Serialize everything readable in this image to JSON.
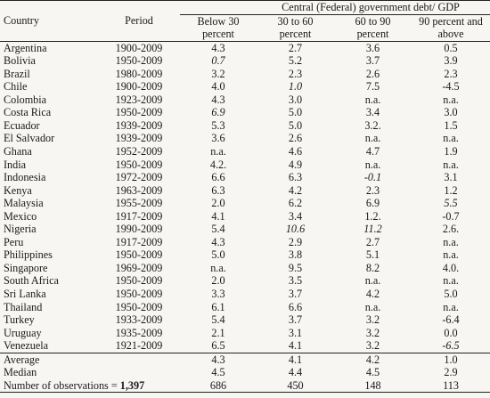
{
  "header": {
    "group_title": "Central (Federal) government debt/ GDP",
    "country": "Country",
    "period": "Period",
    "cols_line1": [
      "Below 30",
      "30 to 60",
      "60 to 90",
      "90 percent and"
    ],
    "cols_line2": [
      "percent",
      "percent",
      "percent",
      "above"
    ]
  },
  "rows": [
    {
      "country": "Argentina",
      "period": "1900-2009",
      "v": [
        "4.3",
        "2.7",
        "3.6",
        "0.5"
      ]
    },
    {
      "country": "Bolivia",
      "period": "1950-2009",
      "v": [
        "0.7",
        "5.2",
        "3.7",
        "3.9"
      ]
    },
    {
      "country": "Brazil",
      "period": "1980-2009",
      "v": [
        "3.2",
        "2.3",
        "2.6",
        "2.3"
      ]
    },
    {
      "country": "Chile",
      "period": "1900-2009",
      "v": [
        "4.0",
        "1.0",
        "7.5",
        "-4.5"
      ]
    },
    {
      "country": "Colombia",
      "period": "1923-2009",
      "v": [
        "4.3",
        "3.0",
        "n.a.",
        "n.a."
      ]
    },
    {
      "country": "Costa Rica",
      "period": "1950-2009",
      "v": [
        "6.9",
        "5.0",
        "3.4",
        "3.0"
      ]
    },
    {
      "country": "Ecuador",
      "period": "1939-2009",
      "v": [
        "5.3",
        "5.0",
        "3.2.",
        "1.5"
      ]
    },
    {
      "country": "El Salvador",
      "period": "1939-2009",
      "v": [
        "3.6",
        "2.6",
        "n.a.",
        "n.a."
      ]
    },
    {
      "country": "Ghana",
      "period": "1952-2009",
      "v": [
        "n.a.",
        "4.6",
        "4.7",
        "1.9"
      ]
    },
    {
      "country": "India",
      "period": "1950-2009",
      "v": [
        "4.2.",
        "4.9",
        "n.a.",
        "n.a."
      ]
    },
    {
      "country": "Indonesia",
      "period": "1972-2009",
      "v": [
        "6.6",
        "6.3",
        "-0.1",
        "3.1"
      ]
    },
    {
      "country": "Kenya",
      "period": "1963-2009",
      "v": [
        "6.3",
        "4.2",
        "2.3",
        "1.2"
      ]
    },
    {
      "country": "Malaysia",
      "period": "1955-2009",
      "v": [
        "2.0",
        "6.2",
        "6.9",
        "5.5"
      ]
    },
    {
      "country": "Mexico",
      "period": "1917-2009",
      "v": [
        "4.1",
        "3.4",
        "1.2.",
        "-0.7"
      ]
    },
    {
      "country": "Nigeria",
      "period": "1990-2009",
      "v": [
        "5.4",
        "10.6",
        "11.2",
        "2.6."
      ]
    },
    {
      "country": "Peru",
      "period": "1917-2009",
      "v": [
        "4.3",
        "2.9",
        "2.7",
        "n.a."
      ]
    },
    {
      "country": "Philippines",
      "period": "1950-2009",
      "v": [
        "5.0",
        "3.8",
        "5.1",
        "n.a."
      ]
    },
    {
      "country": "Singapore",
      "period": "1969-2009",
      "v": [
        "n.a.",
        "9.5",
        "8.2",
        "4.0."
      ]
    },
    {
      "country": "South Africa",
      "period": "1950-2009",
      "v": [
        "2.0",
        "3.5",
        "n.a.",
        "n.a."
      ]
    },
    {
      "country": "Sri Lanka",
      "period": "1950-2009",
      "v": [
        "3.3",
        "3.7",
        "4.2",
        "5.0"
      ]
    },
    {
      "country": "Thailand",
      "period": "1950-2009",
      "v": [
        "6.1",
        "6.6",
        "n.a.",
        "n.a."
      ]
    },
    {
      "country": "Turkey",
      "period": "1933-2009",
      "v": [
        "5.4",
        "3.7",
        "3.2",
        "-6.4"
      ]
    },
    {
      "country": "Uruguay",
      "period": "1935-2009",
      "v": [
        "2.1",
        "3.1",
        "3.2",
        "0.0"
      ]
    },
    {
      "country": "Venezuela",
      "period": "1921-2009",
      "v": [
        "6.5",
        "4.1",
        "3.2",
        "-6.5"
      ]
    }
  ],
  "average": {
    "label": "Average",
    "v": [
      "4.3",
      "4.1",
      "4.2",
      "1.0"
    ]
  },
  "median": {
    "label": "Median",
    "v": [
      "4.5",
      "4.4",
      "4.5",
      "2.9"
    ]
  },
  "observations": {
    "label": "Number of observations = ",
    "total": "1,397",
    "v": [
      "686",
      "450",
      "148",
      "113"
    ]
  }
}
